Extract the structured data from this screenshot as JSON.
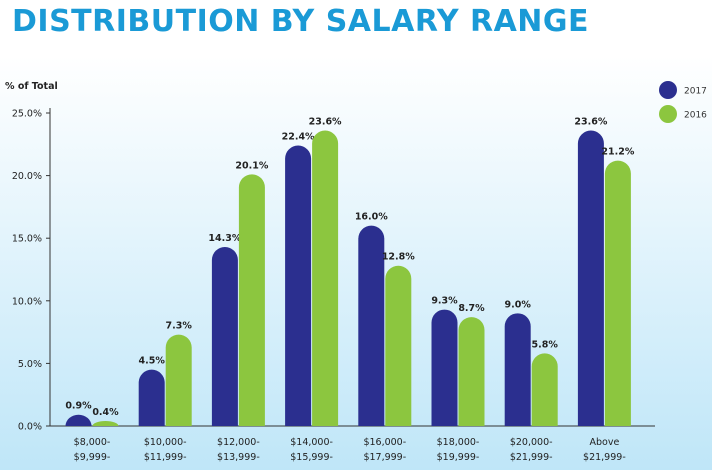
{
  "page": {
    "title": "DISTRIBUTION BY SALARY RANGE"
  },
  "colors": {
    "title": "#1a9ad6",
    "s2017": "#2b2f8f",
    "s2016": "#8cc63f",
    "bgTop": "#ffffff",
    "bgBottom": "#bfe6f8"
  },
  "chart_data": {
    "type": "bar",
    "title": "DISTRIBUTION BY SALARY RANGE",
    "ylabel": "% of Total",
    "xlabel": "",
    "ylim": [
      0,
      25
    ],
    "yticks": [
      "0.0%",
      "5.0%",
      "10.0%",
      "15.0%",
      "20.0%",
      "25.0%"
    ],
    "grid": false,
    "legend": "top-right",
    "categories": [
      [
        "$8,000-",
        "$9,999-"
      ],
      [
        "$10,000-",
        "$11,999-"
      ],
      [
        "$12,000-",
        "$13,999-"
      ],
      [
        "$14,000-",
        "$15,999-"
      ],
      [
        "$16,000-",
        "$17,999-"
      ],
      [
        "$18,000-",
        "$19,999-"
      ],
      [
        "$20,000-",
        "$21,999-"
      ],
      [
        "Above",
        "$21,999-"
      ]
    ],
    "series": [
      {
        "name": "2017",
        "values": [
          0.9,
          4.5,
          14.3,
          22.4,
          16.0,
          9.3,
          9.0,
          23.6
        ],
        "labels": [
          "0.9%",
          "4.5%",
          "14.3%",
          "22.4%",
          "16.0%",
          "9.3%",
          "9.0%",
          "23.6%"
        ]
      },
      {
        "name": "2016",
        "values": [
          0.4,
          7.3,
          20.1,
          23.6,
          12.8,
          8.7,
          5.8,
          21.2
        ],
        "labels": [
          "0.4%",
          "7.3%",
          "20.1%",
          "23.6%",
          "12.8%",
          "8.7%",
          "5.8%",
          "21.2%"
        ]
      }
    ]
  }
}
